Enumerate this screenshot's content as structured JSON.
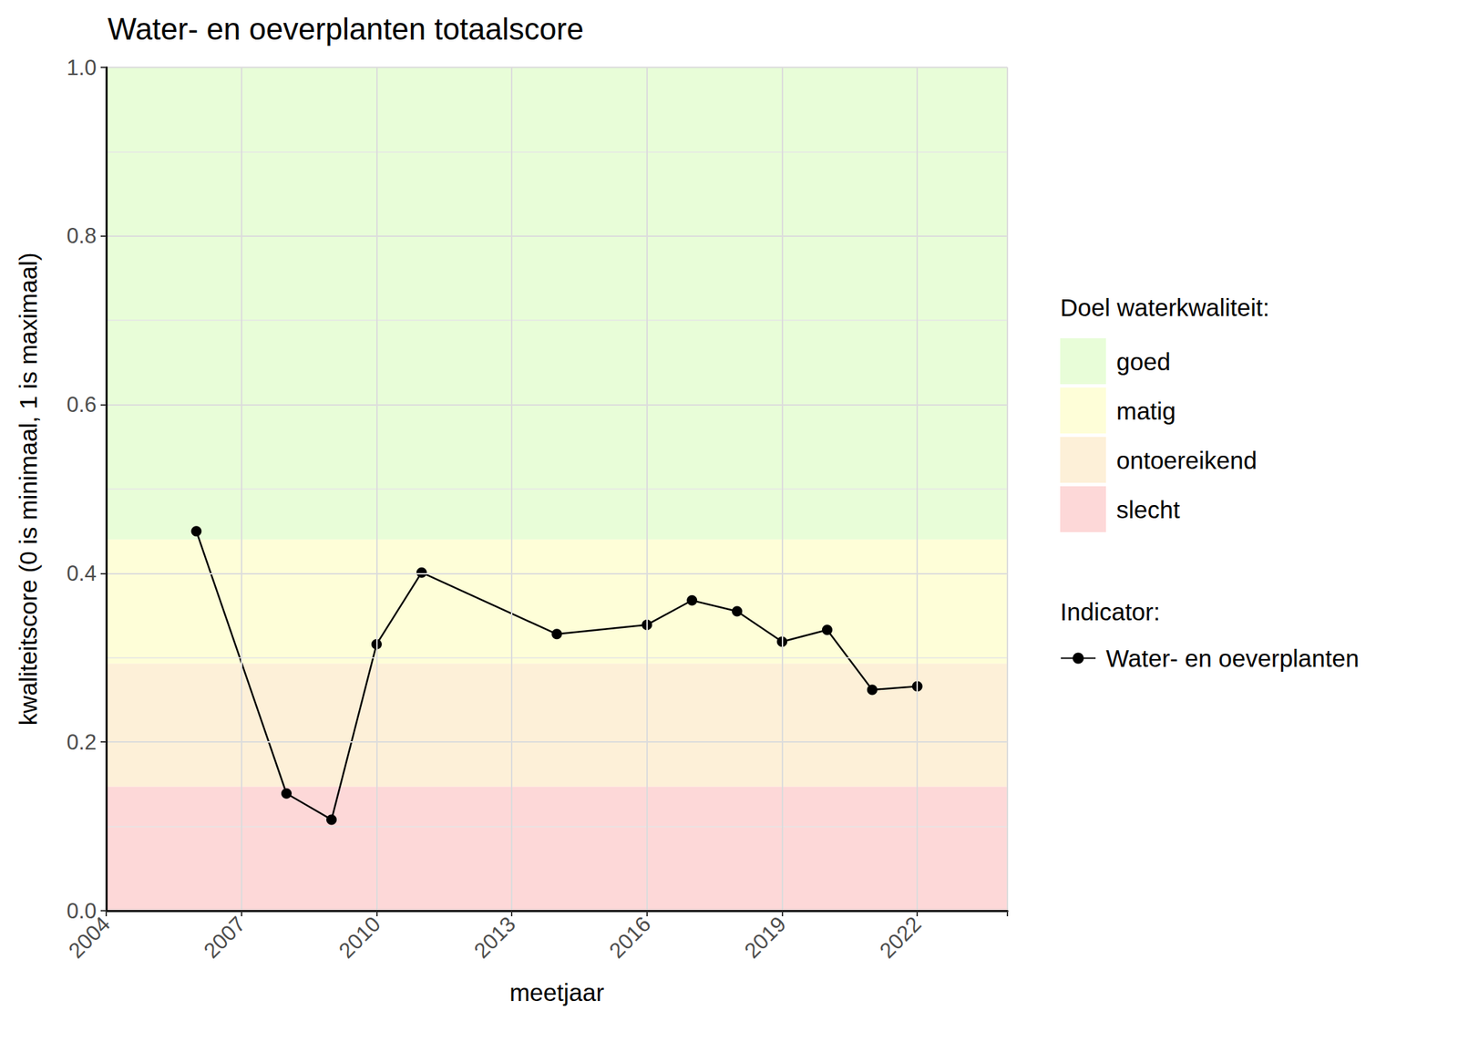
{
  "chart_data": {
    "type": "line",
    "title": "Water- en oeverplanten totaalscore",
    "xlabel": "meetjaar",
    "ylabel": "kwaliteitscore (0 is minimaal, 1 is maximaal)",
    "x": [
      2006,
      2008,
      2009,
      2010,
      2011,
      2014,
      2016,
      2017,
      2018,
      2019,
      2020,
      2021,
      2022
    ],
    "series": [
      {
        "name": "Water- en oeverplanten",
        "color": "#000000",
        "marker": "circle",
        "values": [
          0.45,
          0.139,
          0.108,
          0.316,
          0.401,
          0.328,
          0.339,
          0.368,
          0.355,
          0.319,
          0.333,
          0.262,
          0.266
        ]
      }
    ],
    "xlim": [
      2004,
      2024
    ],
    "xticks": [
      2004,
      2007,
      2010,
      2013,
      2016,
      2019,
      2022
    ],
    "ylim": [
      0,
      1
    ],
    "yticks": [
      {
        "value": 0,
        "label": "0.0"
      },
      {
        "value": 0.2,
        "label": "0.2"
      },
      {
        "value": 0.4,
        "label": "0.4"
      },
      {
        "value": 0.6,
        "label": "0.6"
      },
      {
        "value": 0.8,
        "label": "0.8"
      },
      {
        "value": 1,
        "label": "1.0"
      }
    ],
    "grid": true,
    "legend": "right",
    "band_legend_title": "Doel waterkwaliteit:",
    "series_legend_title": "Indicator:",
    "bands": [
      {
        "name": "goed",
        "color": "#e8fdd8",
        "from": 0.44,
        "to": 1
      },
      {
        "name": "matig",
        "color": "#fefed8",
        "from": 0.293,
        "to": 0.44
      },
      {
        "name": "ontoereikend",
        "color": "#fdf0d8",
        "from": 0.147,
        "to": 0.293
      },
      {
        "name": "slecht",
        "color": "#fdd8d8",
        "from": 0,
        "to": 0.147
      }
    ]
  }
}
